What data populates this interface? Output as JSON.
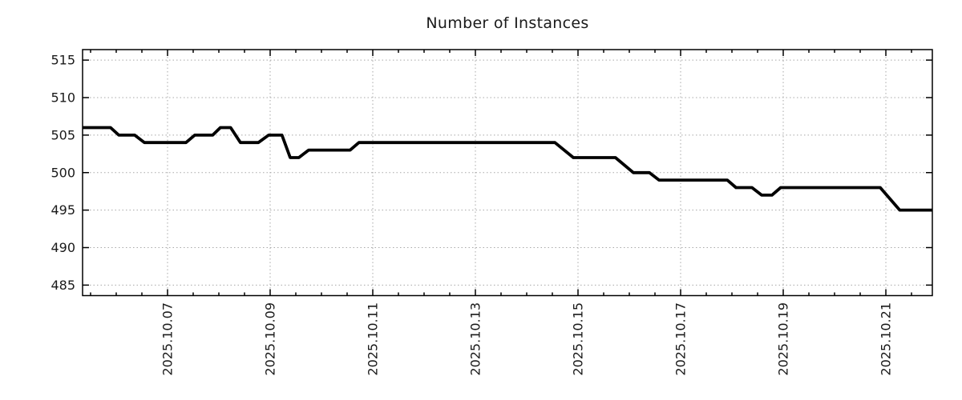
{
  "chart_data": {
    "type": "line",
    "title": "Number of Instances",
    "xlabel": "",
    "ylabel": "",
    "legend": "none",
    "grid": "dotted",
    "colors": {
      "line": "#000000",
      "axis": "#000000",
      "grid": "#a8a8a8",
      "text": "#1a1a1a",
      "background": "#ffffff"
    },
    "x_axis": {
      "unit": "days since 2025-10-05 00:00",
      "range": [
        0.344,
        16.906
      ],
      "minor_tick_interval": 0.5,
      "label_rotation_deg": 90,
      "major_ticks": [
        {
          "t": 2,
          "label": "2025.10.07"
        },
        {
          "t": 4,
          "label": "2025.10.09"
        },
        {
          "t": 6,
          "label": "2025.10.11"
        },
        {
          "t": 8,
          "label": "2025.10.13"
        },
        {
          "t": 10,
          "label": "2025.10.15"
        },
        {
          "t": 12,
          "label": "2025.10.17"
        },
        {
          "t": 14,
          "label": "2025.10.19"
        },
        {
          "t": 16,
          "label": "2025.10.21"
        }
      ]
    },
    "y_axis": {
      "range": [
        483.6,
        516.4
      ],
      "ticks": [
        485,
        490,
        495,
        500,
        505,
        510,
        515
      ]
    },
    "series": [
      {
        "name": "instances",
        "color": "#000000",
        "points": [
          [
            0.34,
            506
          ],
          [
            0.89,
            506
          ],
          [
            1.05,
            505
          ],
          [
            1.36,
            505
          ],
          [
            1.55,
            504
          ],
          [
            2.36,
            504
          ],
          [
            2.53,
            505
          ],
          [
            2.88,
            505
          ],
          [
            3.03,
            506
          ],
          [
            3.23,
            506
          ],
          [
            3.42,
            504
          ],
          [
            3.77,
            504
          ],
          [
            3.97,
            505
          ],
          [
            4.23,
            505
          ],
          [
            4.39,
            502
          ],
          [
            4.56,
            502
          ],
          [
            4.75,
            503
          ],
          [
            5.56,
            503
          ],
          [
            5.73,
            504
          ],
          [
            9.55,
            504
          ],
          [
            9.91,
            502
          ],
          [
            10.73,
            502
          ],
          [
            11.08,
            500
          ],
          [
            11.39,
            500
          ],
          [
            11.58,
            499
          ],
          [
            12.91,
            499
          ],
          [
            13.08,
            498
          ],
          [
            13.39,
            498
          ],
          [
            13.58,
            497
          ],
          [
            13.78,
            497
          ],
          [
            13.95,
            498
          ],
          [
            15.89,
            498
          ],
          [
            16.27,
            495
          ],
          [
            16.91,
            495
          ]
        ]
      }
    ]
  }
}
